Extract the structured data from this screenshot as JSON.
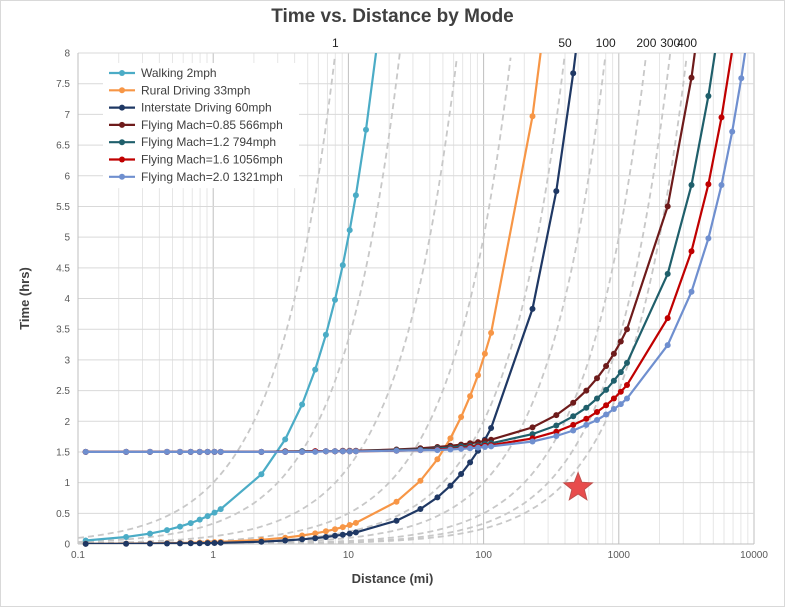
{
  "chart_data": {
    "type": "line",
    "title": "Time vs. Distance by Mode",
    "xlabel": "Distance (mi)",
    "ylabel": "Time (hrs)",
    "x_scale": "log",
    "xlim": [
      0.1,
      10000
    ],
    "ylim": [
      0,
      8
    ],
    "x_ticks": [
      "0.1",
      "1",
      "10",
      "100",
      "1000",
      "10000"
    ],
    "y_ticks": [
      "0",
      "0.5",
      "1",
      "1.5",
      "2",
      "2.5",
      "3",
      "3.5",
      "4",
      "4.5",
      "5",
      "5.5",
      "6",
      "6.5",
      "7",
      "7.5",
      "8"
    ],
    "grid": true,
    "legend_position": "top-left",
    "series": [
      {
        "name": "Walking 2mph",
        "color": "#4bacc6",
        "points": [
          [
            0.114,
            0.057
          ],
          [
            0.227,
            0.114
          ],
          [
            0.341,
            0.17
          ],
          [
            0.455,
            0.227
          ],
          [
            0.568,
            0.284
          ],
          [
            0.682,
            0.341
          ],
          [
            0.795,
            0.398
          ],
          [
            0.909,
            0.455
          ],
          [
            1.023,
            0.511
          ],
          [
            1.136,
            0.568
          ],
          [
            2.273,
            1.136
          ],
          [
            3.409,
            1.705
          ],
          [
            4.545,
            2.273
          ],
          [
            5.682,
            2.841
          ],
          [
            6.818,
            3.409
          ],
          [
            7.955,
            3.977
          ],
          [
            9.091,
            4.545
          ],
          [
            10.227,
            5.114
          ],
          [
            11.364,
            5.682
          ],
          [
            13.5,
            6.75
          ],
          [
            16,
            8
          ]
        ]
      },
      {
        "name": "Rural Driving 33mph",
        "color": "#f79646",
        "points": [
          [
            0.114,
            0.003
          ],
          [
            0.227,
            0.007
          ],
          [
            0.341,
            0.01
          ],
          [
            0.455,
            0.014
          ],
          [
            0.568,
            0.017
          ],
          [
            0.682,
            0.021
          ],
          [
            0.795,
            0.024
          ],
          [
            0.909,
            0.028
          ],
          [
            1.023,
            0.031
          ],
          [
            1.136,
            0.034
          ],
          [
            2.273,
            0.069
          ],
          [
            3.409,
            0.103
          ],
          [
            4.545,
            0.138
          ],
          [
            5.682,
            0.172
          ],
          [
            6.818,
            0.207
          ],
          [
            7.955,
            0.241
          ],
          [
            9.091,
            0.275
          ],
          [
            10.227,
            0.31
          ],
          [
            11.364,
            0.344
          ],
          [
            22.7,
            0.69
          ],
          [
            34.1,
            1.03
          ],
          [
            45.5,
            1.38
          ],
          [
            56.8,
            1.72
          ],
          [
            68.2,
            2.07
          ],
          [
            79.5,
            2.41
          ],
          [
            90.9,
            2.75
          ],
          [
            102.3,
            3.1
          ],
          [
            113.6,
            3.44
          ],
          [
            230,
            6.97
          ],
          [
            264,
            8
          ]
        ]
      },
      {
        "name": "Interstate Driving 60mph",
        "color": "#1f3864",
        "points": [
          [
            0.114,
            0.002
          ],
          [
            0.227,
            0.004
          ],
          [
            0.341,
            0.006
          ],
          [
            0.455,
            0.008
          ],
          [
            0.568,
            0.009
          ],
          [
            0.682,
            0.011
          ],
          [
            0.795,
            0.013
          ],
          [
            0.909,
            0.015
          ],
          [
            1.023,
            0.017
          ],
          [
            1.136,
            0.019
          ],
          [
            2.273,
            0.038
          ],
          [
            3.409,
            0.057
          ],
          [
            4.545,
            0.076
          ],
          [
            5.682,
            0.095
          ],
          [
            6.818,
            0.114
          ],
          [
            7.955,
            0.133
          ],
          [
            9.091,
            0.152
          ],
          [
            10.227,
            0.17
          ],
          [
            11.364,
            0.189
          ],
          [
            22.7,
            0.38
          ],
          [
            34.1,
            0.57
          ],
          [
            45.5,
            0.76
          ],
          [
            56.8,
            0.95
          ],
          [
            68.2,
            1.14
          ],
          [
            79.5,
            1.33
          ],
          [
            90.9,
            1.52
          ],
          [
            102.3,
            1.7
          ],
          [
            113.6,
            1.89
          ],
          [
            230,
            3.83
          ],
          [
            345,
            5.75
          ],
          [
            460,
            7.67
          ],
          [
            480,
            8
          ]
        ]
      },
      {
        "name": "Flying Mach=0.85 566mph",
        "color": "#6e1b1b",
        "points": [
          [
            0.114,
            1.5
          ],
          [
            0.227,
            1.5
          ],
          [
            0.341,
            1.5
          ],
          [
            0.455,
            1.5
          ],
          [
            0.568,
            1.5
          ],
          [
            0.682,
            1.5
          ],
          [
            0.795,
            1.5
          ],
          [
            0.909,
            1.5
          ],
          [
            1.023,
            1.5
          ],
          [
            1.136,
            1.5
          ],
          [
            2.273,
            1.5
          ],
          [
            3.409,
            1.51
          ],
          [
            4.545,
            1.51
          ],
          [
            5.682,
            1.51
          ],
          [
            6.818,
            1.51
          ],
          [
            7.955,
            1.51
          ],
          [
            9.091,
            1.52
          ],
          [
            10.227,
            1.52
          ],
          [
            11.364,
            1.52
          ],
          [
            22.7,
            1.54
          ],
          [
            34.1,
            1.56
          ],
          [
            45.5,
            1.58
          ],
          [
            56.8,
            1.6
          ],
          [
            68.2,
            1.62
          ],
          [
            79.5,
            1.64
          ],
          [
            90.9,
            1.66
          ],
          [
            102.3,
            1.68
          ],
          [
            113.6,
            1.7
          ],
          [
            230,
            1.9
          ],
          [
            345,
            2.1
          ],
          [
            460,
            2.3
          ],
          [
            575,
            2.5
          ],
          [
            690,
            2.7
          ],
          [
            805,
            2.9
          ],
          [
            920,
            3.1
          ],
          [
            1035,
            3.3
          ],
          [
            1150,
            3.5
          ],
          [
            2300,
            5.5
          ],
          [
            3450,
            7.6
          ],
          [
            3650,
            8
          ]
        ]
      },
      {
        "name": "Flying Mach=1.2 794mph",
        "color": "#1f5f6b",
        "points": [
          [
            0.114,
            1.5
          ],
          [
            0.227,
            1.5
          ],
          [
            0.341,
            1.5
          ],
          [
            0.455,
            1.5
          ],
          [
            0.568,
            1.5
          ],
          [
            0.682,
            1.5
          ],
          [
            0.795,
            1.5
          ],
          [
            0.909,
            1.5
          ],
          [
            1.023,
            1.5
          ],
          [
            1.136,
            1.5
          ],
          [
            2.273,
            1.5
          ],
          [
            3.409,
            1.5
          ],
          [
            4.545,
            1.51
          ],
          [
            5.682,
            1.51
          ],
          [
            6.818,
            1.51
          ],
          [
            7.955,
            1.51
          ],
          [
            9.091,
            1.51
          ],
          [
            10.227,
            1.51
          ],
          [
            11.364,
            1.51
          ],
          [
            22.7,
            1.53
          ],
          [
            34.1,
            1.54
          ],
          [
            45.5,
            1.56
          ],
          [
            56.8,
            1.57
          ],
          [
            68.2,
            1.59
          ],
          [
            79.5,
            1.6
          ],
          [
            90.9,
            1.61
          ],
          [
            102.3,
            1.63
          ],
          [
            113.6,
            1.64
          ],
          [
            230,
            1.79
          ],
          [
            345,
            1.93
          ],
          [
            460,
            2.08
          ],
          [
            575,
            2.22
          ],
          [
            690,
            2.37
          ],
          [
            805,
            2.51
          ],
          [
            920,
            2.66
          ],
          [
            1035,
            2.8
          ],
          [
            1150,
            2.95
          ],
          [
            2300,
            4.4
          ],
          [
            3450,
            5.85
          ],
          [
            4600,
            7.3
          ],
          [
            5150,
            8
          ]
        ]
      },
      {
        "name": "Flying Mach=1.6 1056mph",
        "color": "#c00000",
        "points": [
          [
            0.114,
            1.5
          ],
          [
            0.227,
            1.5
          ],
          [
            0.341,
            1.5
          ],
          [
            0.455,
            1.5
          ],
          [
            0.568,
            1.5
          ],
          [
            0.682,
            1.5
          ],
          [
            0.795,
            1.5
          ],
          [
            0.909,
            1.5
          ],
          [
            1.023,
            1.5
          ],
          [
            1.136,
            1.5
          ],
          [
            2.273,
            1.5
          ],
          [
            3.409,
            1.5
          ],
          [
            4.545,
            1.5
          ],
          [
            5.682,
            1.51
          ],
          [
            6.818,
            1.51
          ],
          [
            7.955,
            1.51
          ],
          [
            9.091,
            1.51
          ],
          [
            10.227,
            1.51
          ],
          [
            11.364,
            1.51
          ],
          [
            22.7,
            1.52
          ],
          [
            34.1,
            1.53
          ],
          [
            45.5,
            1.54
          ],
          [
            56.8,
            1.55
          ],
          [
            68.2,
            1.56
          ],
          [
            79.5,
            1.58
          ],
          [
            90.9,
            1.59
          ],
          [
            102.3,
            1.6
          ],
          [
            113.6,
            1.61
          ],
          [
            230,
            1.72
          ],
          [
            345,
            1.83
          ],
          [
            460,
            1.94
          ],
          [
            575,
            2.04
          ],
          [
            690,
            2.15
          ],
          [
            805,
            2.26
          ],
          [
            920,
            2.37
          ],
          [
            1035,
            2.48
          ],
          [
            1150,
            2.59
          ],
          [
            2300,
            3.68
          ],
          [
            3450,
            4.77
          ],
          [
            4600,
            5.86
          ],
          [
            5750,
            6.95
          ],
          [
            6850,
            8
          ]
        ]
      },
      {
        "name": "Flying Mach=2.0 1321mph",
        "color": "#6f8fcf",
        "points": [
          [
            0.114,
            1.5
          ],
          [
            0.227,
            1.5
          ],
          [
            0.341,
            1.5
          ],
          [
            0.455,
            1.5
          ],
          [
            0.568,
            1.5
          ],
          [
            0.682,
            1.5
          ],
          [
            0.795,
            1.5
          ],
          [
            0.909,
            1.5
          ],
          [
            1.023,
            1.5
          ],
          [
            1.136,
            1.5
          ],
          [
            2.273,
            1.5
          ],
          [
            3.409,
            1.5
          ],
          [
            4.545,
            1.5
          ],
          [
            5.682,
            1.5
          ],
          [
            6.818,
            1.51
          ],
          [
            7.955,
            1.51
          ],
          [
            9.091,
            1.51
          ],
          [
            10.227,
            1.51
          ],
          [
            11.364,
            1.51
          ],
          [
            22.7,
            1.52
          ],
          [
            34.1,
            1.53
          ],
          [
            45.5,
            1.53
          ],
          [
            56.8,
            1.54
          ],
          [
            68.2,
            1.55
          ],
          [
            79.5,
            1.56
          ],
          [
            90.9,
            1.57
          ],
          [
            102.3,
            1.58
          ],
          [
            113.6,
            1.59
          ],
          [
            230,
            1.67
          ],
          [
            345,
            1.76
          ],
          [
            460,
            1.85
          ],
          [
            575,
            1.94
          ],
          [
            690,
            2.02
          ],
          [
            805,
            2.11
          ],
          [
            920,
            2.2
          ],
          [
            1035,
            2.28
          ],
          [
            1150,
            2.37
          ],
          [
            2300,
            3.24
          ],
          [
            3450,
            4.11
          ],
          [
            4600,
            4.98
          ],
          [
            5750,
            5.85
          ],
          [
            6900,
            6.72
          ],
          [
            8050,
            7.59
          ],
          [
            8580,
            8
          ]
        ]
      }
    ],
    "reference_speeds": [
      {
        "label": "1",
        "speed": 1
      },
      {
        "label": "",
        "speed": 3
      },
      {
        "label": "",
        "speed": 8
      },
      {
        "label": "",
        "speed": 20
      },
      {
        "label": "50",
        "speed": 50
      },
      {
        "label": "100",
        "speed": 100
      },
      {
        "label": "200",
        "speed": 200
      },
      {
        "label": "300",
        "speed": 300
      },
      {
        "label": "400",
        "speed": 400
      }
    ],
    "marker": {
      "symbol": "star",
      "x": 500,
      "y": 0.92,
      "color": "#e84c4c"
    }
  }
}
